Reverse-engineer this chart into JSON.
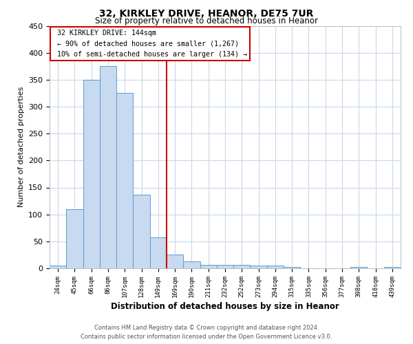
{
  "title": "32, KIRKLEY DRIVE, HEANOR, DE75 7UR",
  "subtitle": "Size of property relative to detached houses in Heanor",
  "xlabel": "Distribution of detached houses by size in Heanor",
  "ylabel": "Number of detached properties",
  "bar_labels": [
    "24sqm",
    "45sqm",
    "66sqm",
    "86sqm",
    "107sqm",
    "128sqm",
    "149sqm",
    "169sqm",
    "190sqm",
    "211sqm",
    "232sqm",
    "252sqm",
    "273sqm",
    "294sqm",
    "315sqm",
    "335sqm",
    "356sqm",
    "377sqm",
    "398sqm",
    "418sqm",
    "439sqm"
  ],
  "bar_values": [
    5,
    110,
    350,
    375,
    325,
    137,
    57,
    26,
    13,
    6,
    6,
    6,
    5,
    5,
    2,
    0,
    0,
    0,
    2,
    0,
    2
  ],
  "bar_color": "#c8daf0",
  "bar_edge_color": "#5b9bd5",
  "vline_x_idx": 6,
  "vline_color": "#cc0000",
  "ylim": [
    0,
    450
  ],
  "yticks": [
    0,
    50,
    100,
    150,
    200,
    250,
    300,
    350,
    400,
    450
  ],
  "annotation_title": "32 KIRKLEY DRIVE: 144sqm",
  "annotation_line1": "← 90% of detached houses are smaller (1,267)",
  "annotation_line2": "10% of semi-detached houses are larger (134) →",
  "annotation_box_color": "#ffffff",
  "annotation_box_edge": "#cc0000",
  "footer_line1": "Contains HM Land Registry data © Crown copyright and database right 2024.",
  "footer_line2": "Contains public sector information licensed under the Open Government Licence v3.0.",
  "background_color": "#ffffff",
  "grid_color": "#c8d8e8"
}
